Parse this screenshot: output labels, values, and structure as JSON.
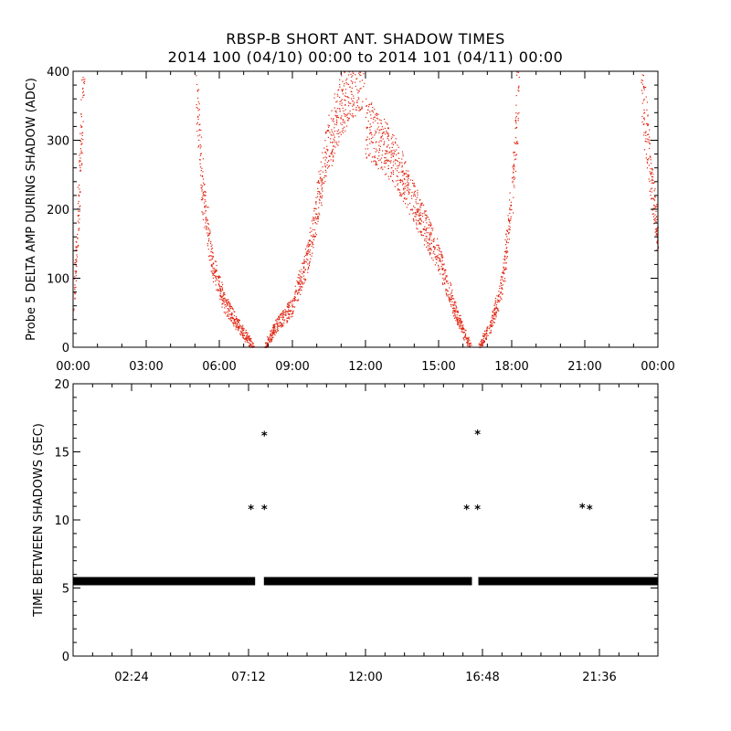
{
  "title": "RBSP-B SHORT ANT. SHADOW TIMES",
  "subtitle": "2014 100 (04/10) 00:00 to 2014 101 (04/11) 00:00",
  "chart_data": [
    {
      "type": "scatter",
      "ylabel": "Probe 5 DELTA AMP DURING SHADOW (ADC)",
      "xlim_hours": [
        0,
        24
      ],
      "ylim": [
        0,
        400
      ],
      "x_ticks": [
        "00:00",
        "03:00",
        "06:00",
        "09:00",
        "12:00",
        "15:00",
        "18:00",
        "21:00",
        "00:00"
      ],
      "y_ticks": [
        "0",
        "100",
        "200",
        "300",
        "400"
      ],
      "series_color": "#e0230f",
      "segments": [
        {
          "x": [
            0.0,
            0.15,
            0.3,
            0.45
          ],
          "y": [
            60,
            150,
            300,
            400
          ]
        },
        {
          "x": [
            5.05,
            5.3,
            5.7,
            6.2,
            6.9,
            7.4
          ],
          "y": [
            370,
            230,
            120,
            65,
            25,
            0
          ]
        },
        {
          "x": [
            7.85,
            8.3,
            9.0,
            9.7,
            10.3,
            10.8,
            11.3,
            11.9
          ],
          "y": [
            0,
            30,
            60,
            140,
            270,
            330,
            380,
            400
          ]
        },
        {
          "x": [
            12.0,
            12.8,
            13.5,
            14.2,
            15.0,
            15.7,
            16.3
          ],
          "y": [
            320,
            290,
            250,
            190,
            130,
            50,
            0
          ]
        },
        {
          "x": [
            16.65,
            17.1,
            17.6,
            18.0,
            18.3
          ],
          "y": [
            0,
            30,
            90,
            220,
            400
          ]
        },
        {
          "x": [
            23.3,
            23.6,
            23.85,
            24.0
          ],
          "y": [
            400,
            280,
            200,
            150
          ]
        }
      ]
    },
    {
      "type": "scatter",
      "ylabel": "TIME BETWEEN SHADOWS (SEC)",
      "xlim_hours": [
        0,
        24
      ],
      "ylim": [
        0,
        20
      ],
      "x_ticks": [
        "02:24",
        "07:12",
        "12:00",
        "16:48",
        "21:36"
      ],
      "x_tick_hours": [
        2.4,
        7.2,
        12.0,
        16.8,
        21.6
      ],
      "y_ticks": [
        "0",
        "5",
        "10",
        "15",
        "20"
      ],
      "baseline_value": 5.5,
      "baseline_gap_hours": [
        [
          7.45,
          7.85
        ],
        [
          16.35,
          16.65
        ]
      ],
      "outliers": [
        {
          "x": 7.3,
          "y": 10.8
        },
        {
          "x": 7.85,
          "y": 10.8
        },
        {
          "x": 7.85,
          "y": 16.2
        },
        {
          "x": 16.15,
          "y": 10.8
        },
        {
          "x": 16.6,
          "y": 10.8
        },
        {
          "x": 16.6,
          "y": 16.3
        },
        {
          "x": 20.9,
          "y": 10.9
        },
        {
          "x": 21.2,
          "y": 10.8
        }
      ],
      "marker": "*",
      "series_color": "#000000"
    }
  ]
}
